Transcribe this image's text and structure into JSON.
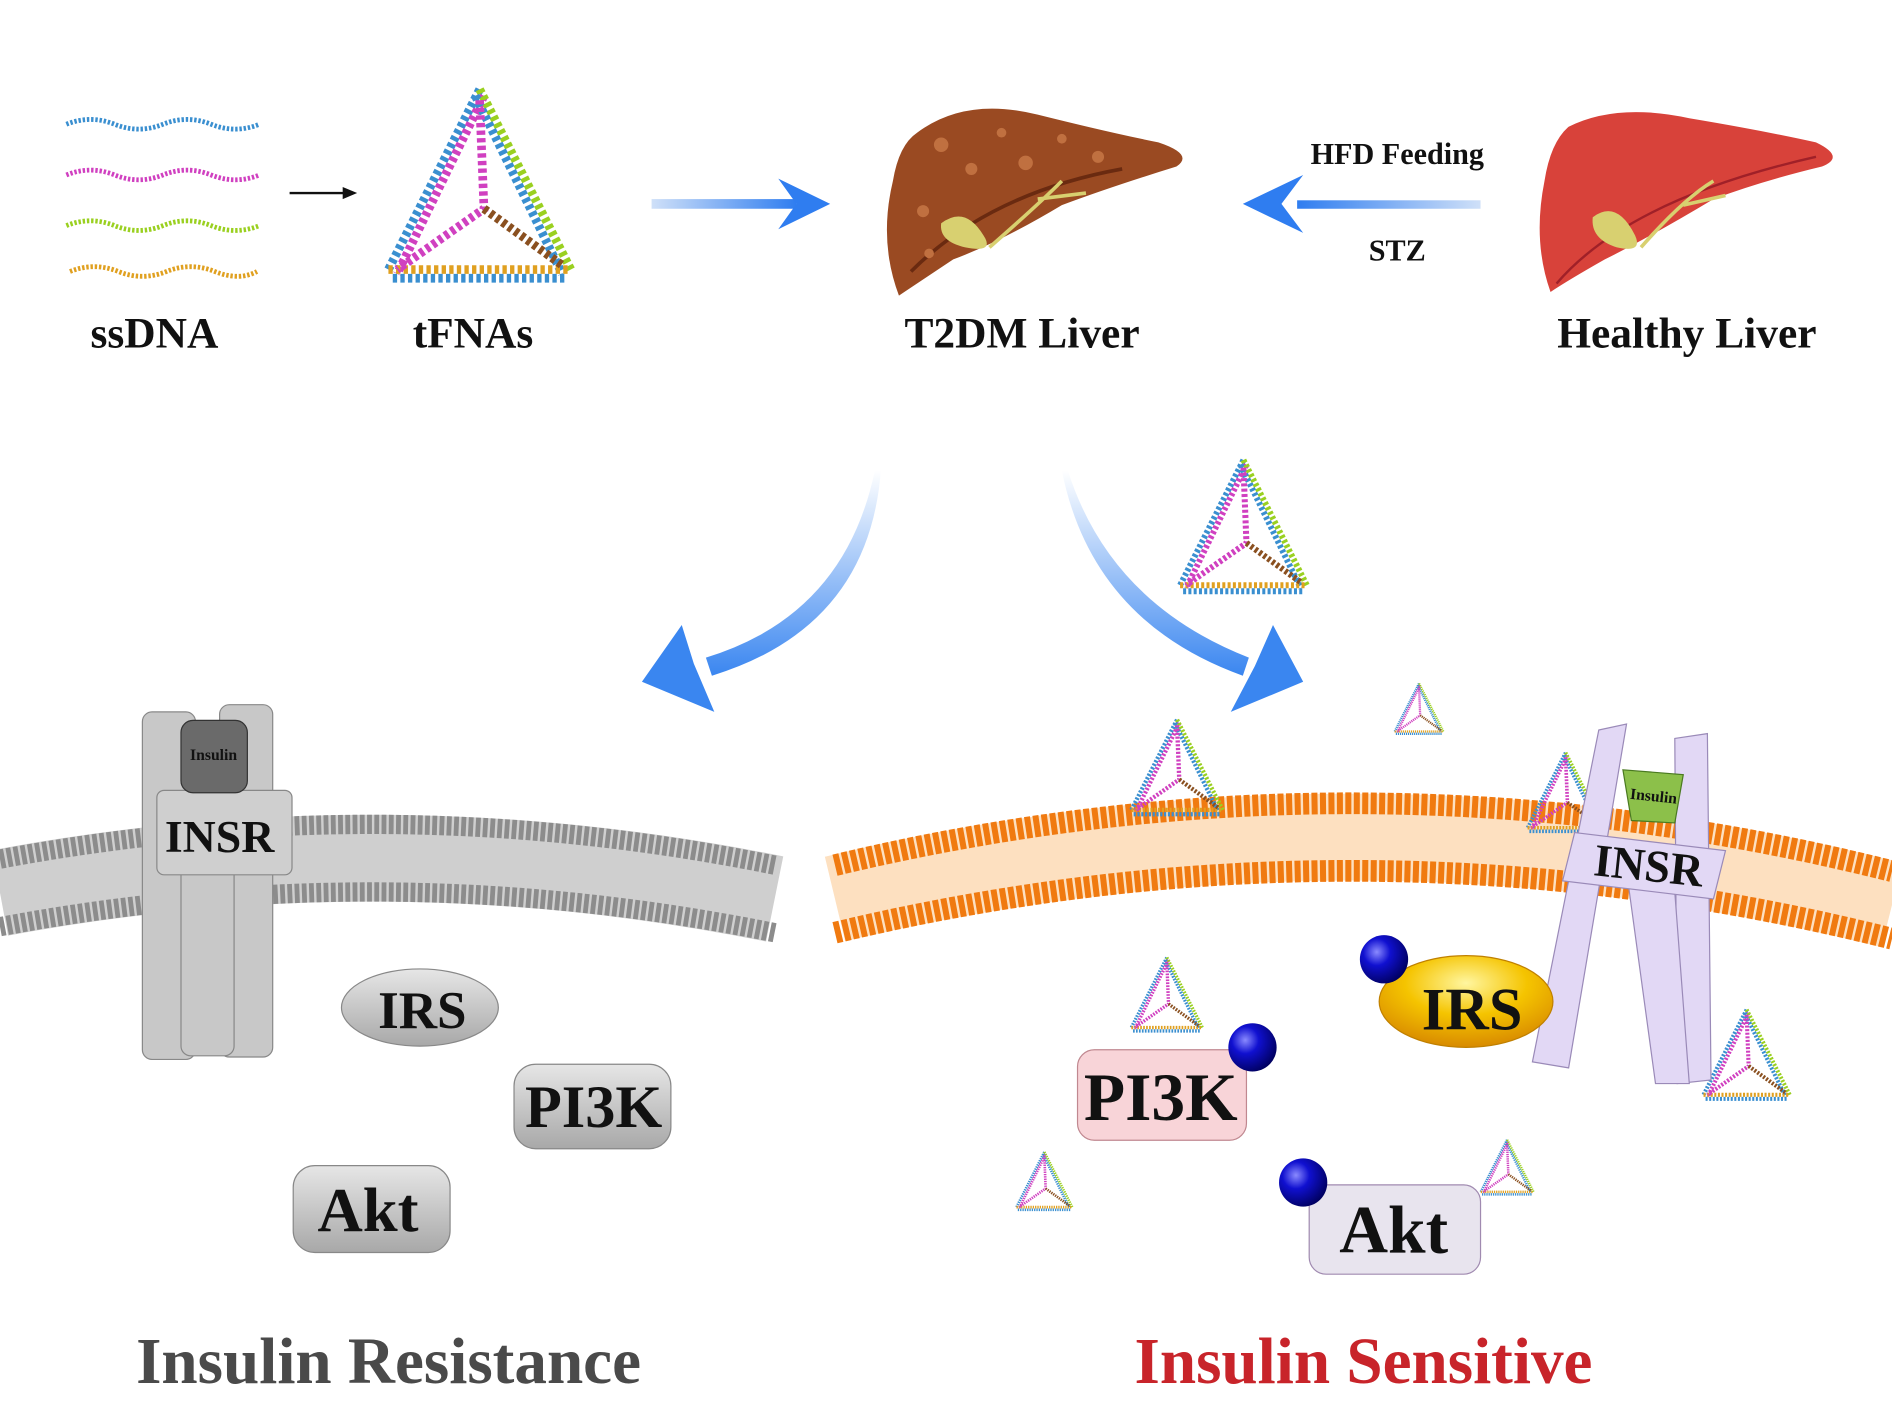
{
  "top": {
    "ssdna_label": "ssDNA",
    "tfnas_label": "tFNAs",
    "t2dm_label": "T2DM Liver",
    "healthy_label": "Healthy Liver",
    "arrow_top_label": "HFD Feeding",
    "arrow_bottom_label": "STZ"
  },
  "left_panel": {
    "insulin_label": "Insulin",
    "receptor_label": "INSR",
    "irs_label": "IRS",
    "pi3k_label": "PI3K",
    "akt_label": "Akt",
    "title": "Insulin Resistance",
    "title_color": "#4a4a4a",
    "membrane_color": "#9a9a9a"
  },
  "right_panel": {
    "insulin_label": "Insulin",
    "receptor_label": "INSR",
    "irs_label": "IRS",
    "pi3k_label": "PI3K",
    "akt_label": "Akt",
    "title": "Insulin Sensitive",
    "title_color": "#c8242a",
    "membrane_color": "#f07a10",
    "phosphate_color": "#1010d0"
  },
  "colors": {
    "arrow_blue": "#2f7df0",
    "t2dm_liver": "#9a4a22",
    "healthy_liver": "#d8423a",
    "dna_strands": [
      "#3a8fd0",
      "#d040c0",
      "#9ad020",
      "#e0a020"
    ]
  }
}
